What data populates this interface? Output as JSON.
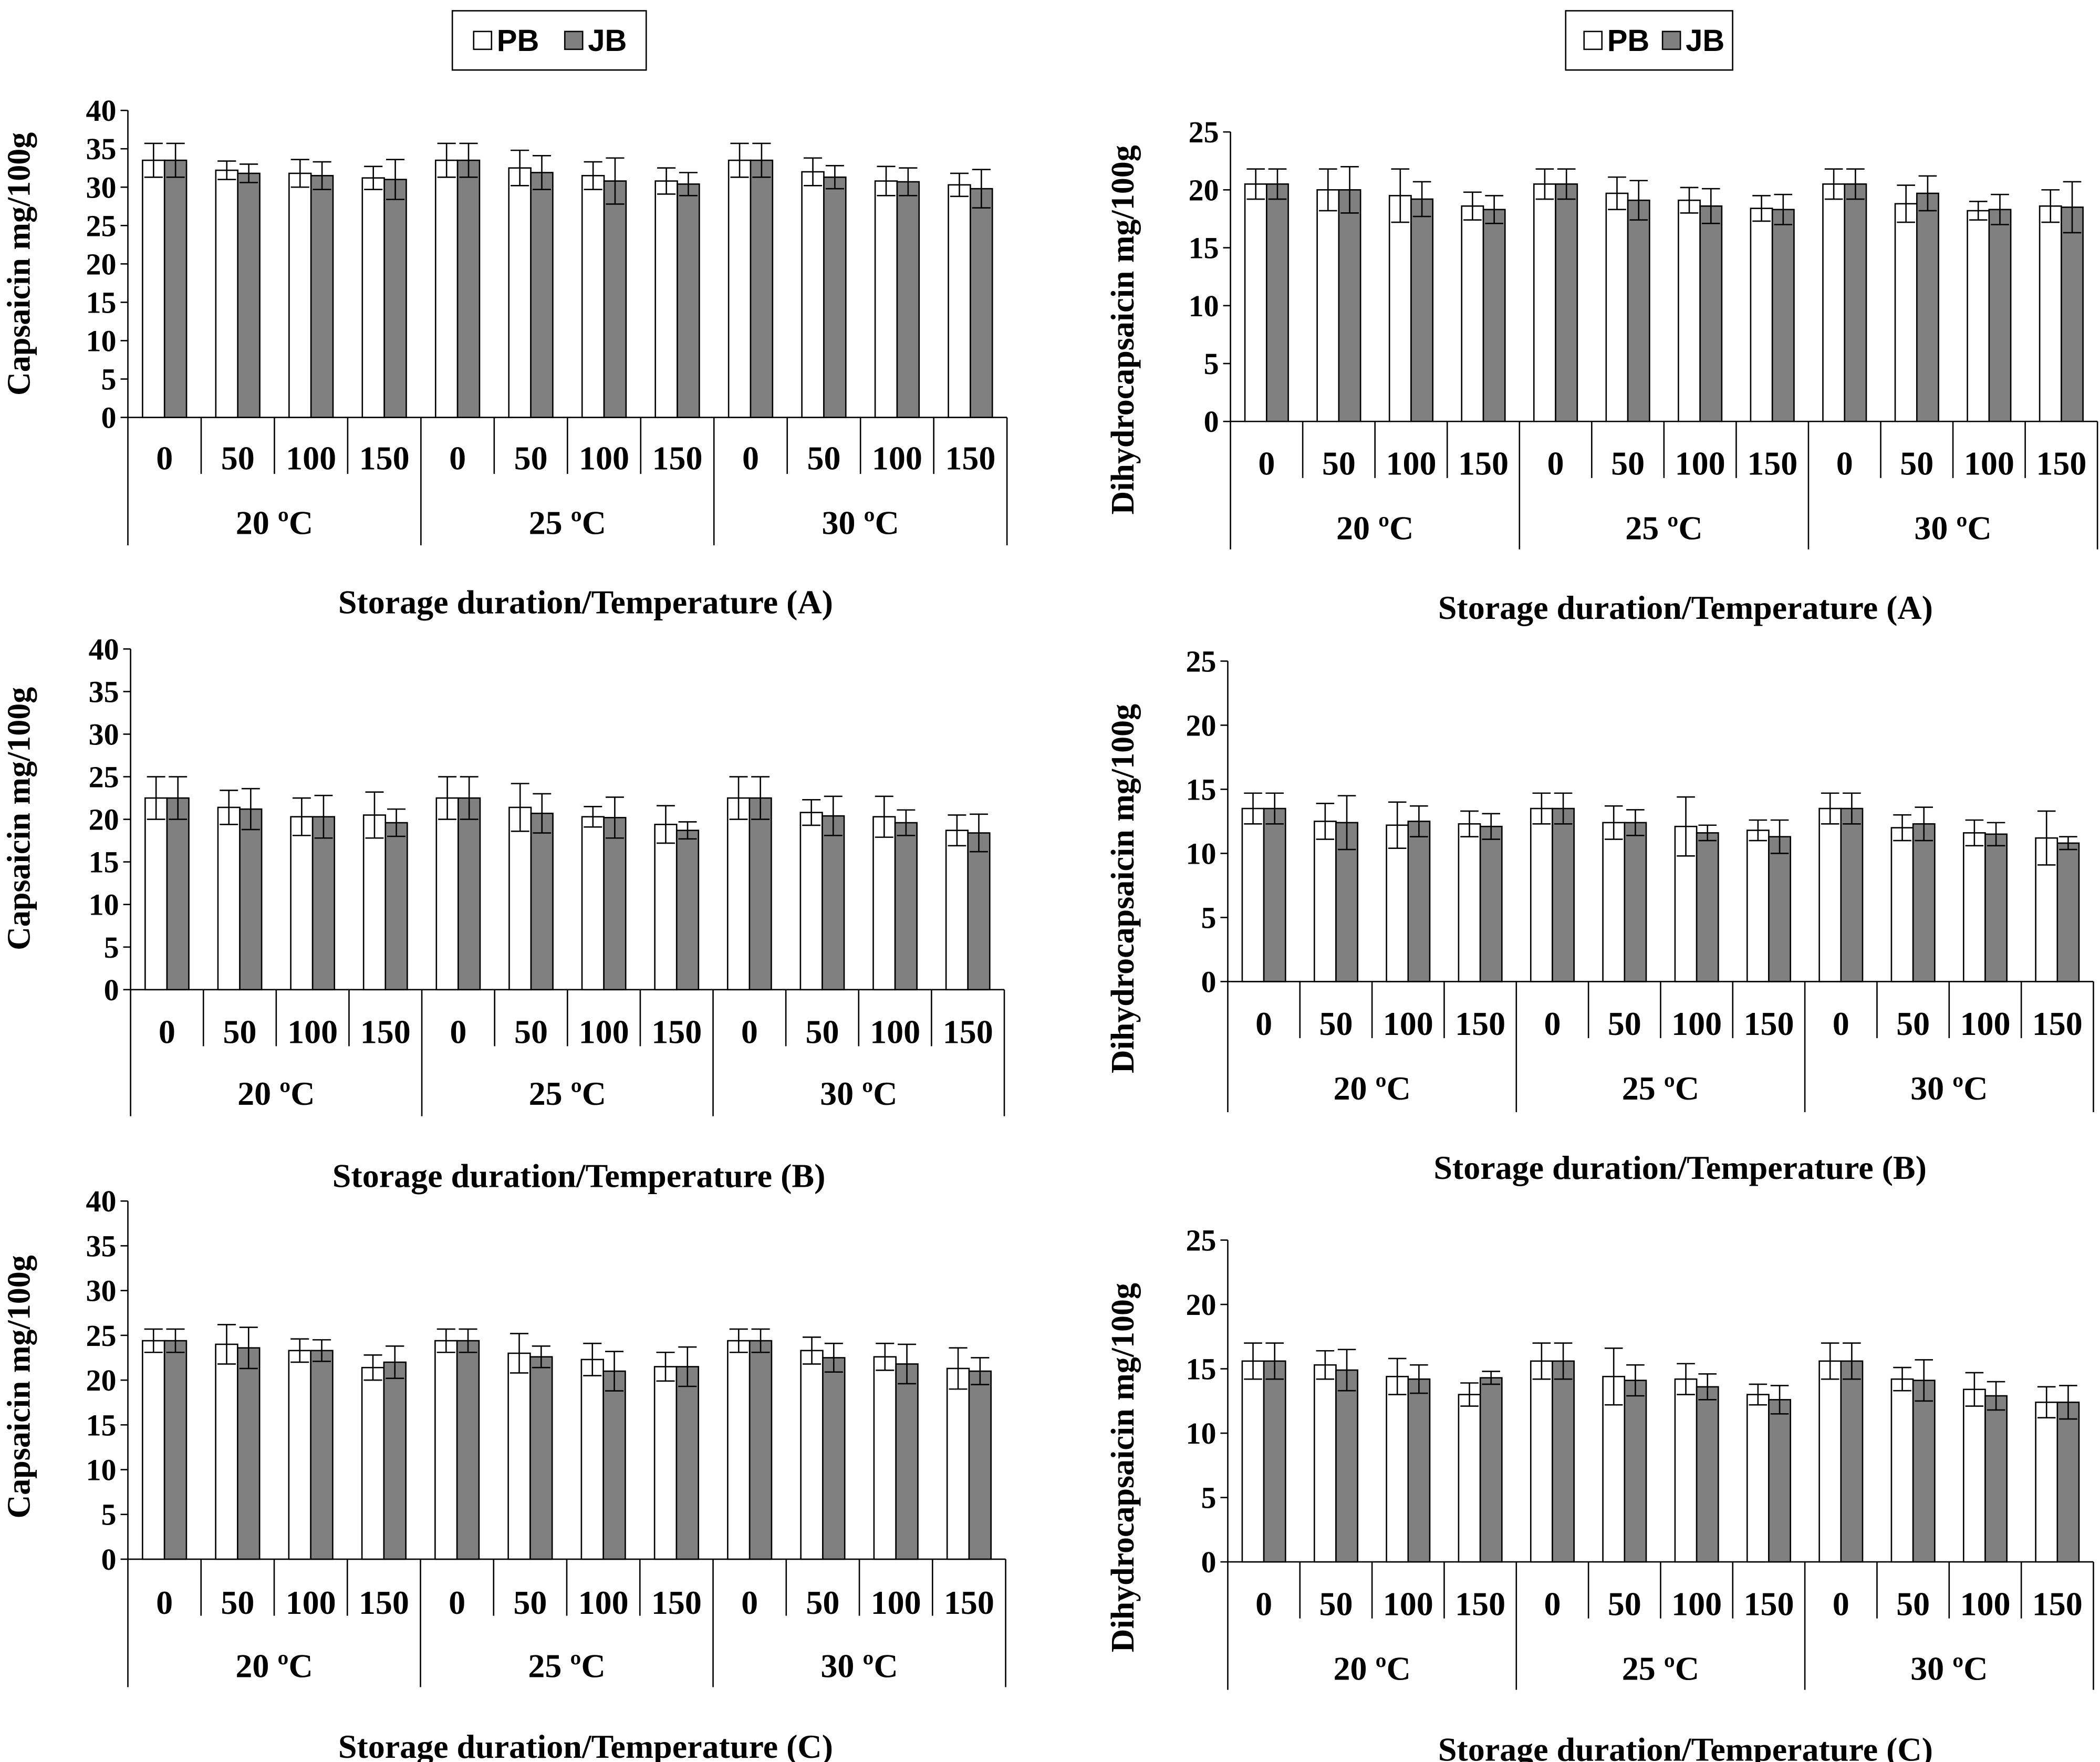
{
  "chart_data": [
    {
      "type": "bar",
      "panel": "left",
      "title": "",
      "ylabel": "Capsaicin mg/100g",
      "xlabel": "Storage duration/Temperature (A)",
      "ylim": [
        0,
        40
      ],
      "yticks": [
        0,
        5,
        10,
        15,
        20,
        25,
        30,
        35,
        40
      ],
      "categories": [
        "0",
        "50",
        "100",
        "150",
        "0",
        "50",
        "100",
        "150",
        "0",
        "50",
        "100",
        "150"
      ],
      "groups": [
        "20 ºC",
        "25 ºC",
        "30 ºC"
      ],
      "legend": {
        "position": "top-center",
        "entries": [
          "PB",
          "JB"
        ]
      },
      "series": [
        {
          "name": "PB",
          "values": [
            33.5,
            32.2,
            31.8,
            31.2,
            33.5,
            32.5,
            31.5,
            30.8,
            33.5,
            32.0,
            30.8,
            30.3
          ],
          "errors": [
            2.2,
            1.2,
            1.8,
            1.5,
            2.2,
            2.3,
            1.8,
            1.7,
            2.2,
            1.8,
            1.9,
            1.5
          ]
        },
        {
          "name": "JB",
          "values": [
            33.5,
            31.8,
            31.5,
            31.0,
            33.5,
            31.9,
            30.8,
            30.4,
            33.5,
            31.3,
            30.7,
            29.8
          ],
          "errors": [
            2.2,
            1.2,
            1.8,
            2.6,
            2.2,
            2.2,
            3.0,
            1.5,
            2.2,
            1.5,
            1.8,
            2.5
          ]
        }
      ]
    },
    {
      "type": "bar",
      "panel": "right",
      "title": "",
      "ylabel": "Dihydrocapsaicin mg/100g",
      "xlabel": "Storage duration/Temperature (A)",
      "ylim": [
        0,
        25
      ],
      "yticks": [
        0,
        5,
        10,
        15,
        20,
        25
      ],
      "categories": [
        "0",
        "50",
        "100",
        "150",
        "0",
        "50",
        "100",
        "150",
        "0",
        "50",
        "100",
        "150"
      ],
      "groups": [
        "20 ºC",
        "25 ºC",
        "30 ºC"
      ],
      "legend": {
        "position": "top-center",
        "entries": [
          "PB",
          "JB"
        ]
      },
      "series": [
        {
          "name": "PB",
          "values": [
            20.5,
            20.0,
            19.5,
            18.6,
            20.5,
            19.7,
            19.1,
            18.4,
            20.5,
            18.8,
            18.2,
            18.6
          ],
          "errors": [
            1.3,
            1.8,
            2.3,
            1.2,
            1.3,
            1.4,
            1.1,
            1.1,
            1.3,
            1.6,
            0.8,
            1.4
          ]
        },
        {
          "name": "JB",
          "values": [
            20.5,
            20.0,
            19.2,
            18.3,
            20.5,
            19.1,
            18.6,
            18.3,
            20.5,
            19.7,
            18.3,
            18.5
          ],
          "errors": [
            1.3,
            2.0,
            1.5,
            1.2,
            1.3,
            1.7,
            1.5,
            1.3,
            1.3,
            1.5,
            1.3,
            2.2
          ]
        }
      ]
    },
    {
      "type": "bar",
      "panel": "left",
      "title": "",
      "ylabel": "Capsaicin mg/100g",
      "xlabel": "Storage duration/Temperature (B)",
      "ylim": [
        0,
        40
      ],
      "yticks": [
        0,
        5,
        10,
        15,
        20,
        25,
        30,
        35,
        40
      ],
      "categories": [
        "0",
        "50",
        "100",
        "150",
        "0",
        "50",
        "100",
        "150",
        "0",
        "50",
        "100",
        "150"
      ],
      "groups": [
        "20 ºC",
        "25 ºC",
        "30 ºC"
      ],
      "legend": {
        "position": "none",
        "entries": []
      },
      "series": [
        {
          "name": "PB",
          "values": [
            22.5,
            21.4,
            20.3,
            20.5,
            22.5,
            21.4,
            20.3,
            19.4,
            22.5,
            20.8,
            20.3,
            18.7
          ],
          "errors": [
            2.5,
            2.0,
            2.2,
            2.7,
            2.5,
            2.8,
            1.2,
            2.2,
            2.5,
            1.5,
            2.4,
            1.8
          ]
        },
        {
          "name": "JB",
          "values": [
            22.5,
            21.2,
            20.3,
            19.6,
            22.5,
            20.7,
            20.2,
            18.7,
            22.5,
            20.4,
            19.6,
            18.4
          ],
          "errors": [
            2.5,
            2.4,
            2.5,
            1.6,
            2.5,
            2.3,
            2.4,
            1.0,
            2.5,
            2.3,
            1.5,
            2.2
          ]
        }
      ]
    },
    {
      "type": "bar",
      "panel": "right",
      "title": "",
      "ylabel": "Dihydrocapsaicin mg/100g",
      "xlabel": "Storage duration/Temperature (B)",
      "ylim": [
        0,
        25
      ],
      "yticks": [
        0,
        5,
        10,
        15,
        20,
        25
      ],
      "categories": [
        "0",
        "50",
        "100",
        "150",
        "0",
        "50",
        "100",
        "150",
        "0",
        "50",
        "100",
        "150"
      ],
      "groups": [
        "20 ºC",
        "25 ºC",
        "30 ºC"
      ],
      "legend": {
        "position": "none",
        "entries": []
      },
      "series": [
        {
          "name": "PB",
          "values": [
            13.5,
            12.5,
            12.2,
            12.3,
            13.5,
            12.4,
            12.1,
            11.8,
            13.5,
            12.0,
            11.6,
            11.2
          ],
          "errors": [
            1.2,
            1.4,
            1.8,
            1.0,
            1.2,
            1.3,
            2.3,
            0.8,
            1.2,
            1.0,
            1.0,
            2.1
          ]
        },
        {
          "name": "JB",
          "values": [
            13.5,
            12.4,
            12.5,
            12.1,
            13.5,
            12.4,
            11.6,
            11.3,
            13.5,
            12.3,
            11.5,
            10.8
          ],
          "errors": [
            1.2,
            2.1,
            1.2,
            1.0,
            1.2,
            1.0,
            0.6,
            1.3,
            1.2,
            1.3,
            0.9,
            0.5
          ]
        }
      ]
    },
    {
      "type": "bar",
      "panel": "left",
      "title": "",
      "ylabel": "Capsaicin mg/100g",
      "xlabel": "Storage duration/Temperature (C)",
      "ylim": [
        0,
        40
      ],
      "yticks": [
        0,
        5,
        10,
        15,
        20,
        25,
        30,
        35,
        40
      ],
      "categories": [
        "0",
        "50",
        "100",
        "150",
        "0",
        "50",
        "100",
        "150",
        "0",
        "50",
        "100",
        "150"
      ],
      "groups": [
        "20 ºC",
        "25 ºC",
        "30 ºC"
      ],
      "legend": {
        "position": "none",
        "entries": []
      },
      "series": [
        {
          "name": "PB",
          "values": [
            24.4,
            24.0,
            23.3,
            21.4,
            24.4,
            23.0,
            22.3,
            21.5,
            24.4,
            23.3,
            22.6,
            21.3
          ],
          "errors": [
            1.3,
            2.2,
            1.3,
            1.4,
            1.3,
            2.2,
            1.8,
            1.6,
            1.3,
            1.5,
            1.5,
            2.3
          ]
        },
        {
          "name": "JB",
          "values": [
            24.4,
            23.6,
            23.3,
            22.0,
            24.4,
            22.6,
            21.0,
            21.5,
            24.4,
            22.5,
            21.8,
            21.0
          ],
          "errors": [
            1.3,
            2.3,
            1.2,
            1.8,
            1.3,
            1.2,
            2.2,
            2.2,
            1.3,
            1.6,
            2.2,
            1.5
          ]
        }
      ]
    },
    {
      "type": "bar",
      "panel": "right",
      "title": "",
      "ylabel": "Dihydrocapsaicin mg/100g",
      "xlabel": "Storage duration/Temperature (C)",
      "ylim": [
        0,
        25
      ],
      "yticks": [
        0,
        5,
        10,
        15,
        20,
        25
      ],
      "categories": [
        "0",
        "50",
        "100",
        "150",
        "0",
        "50",
        "100",
        "150",
        "0",
        "50",
        "100",
        "150"
      ],
      "groups": [
        "20 ºC",
        "25 ºC",
        "30 ºC"
      ],
      "legend": {
        "position": "none",
        "entries": []
      },
      "series": [
        {
          "name": "PB",
          "values": [
            15.6,
            15.3,
            14.4,
            13.0,
            15.6,
            14.4,
            14.2,
            13.0,
            15.6,
            14.2,
            13.4,
            12.4
          ],
          "errors": [
            1.4,
            1.1,
            1.4,
            0.9,
            1.4,
            2.2,
            1.2,
            0.8,
            1.4,
            0.9,
            1.3,
            1.2
          ]
        },
        {
          "name": "JB",
          "values": [
            15.6,
            14.9,
            14.2,
            14.3,
            15.6,
            14.1,
            13.6,
            12.6,
            15.6,
            14.1,
            12.9,
            12.4
          ],
          "errors": [
            1.4,
            1.6,
            1.1,
            0.5,
            1.4,
            1.2,
            1.0,
            1.1,
            1.4,
            1.6,
            1.1,
            1.3
          ]
        }
      ]
    }
  ],
  "colors": {
    "PB": "#ffffff",
    "JB": "#808080",
    "stroke": "#000000"
  }
}
